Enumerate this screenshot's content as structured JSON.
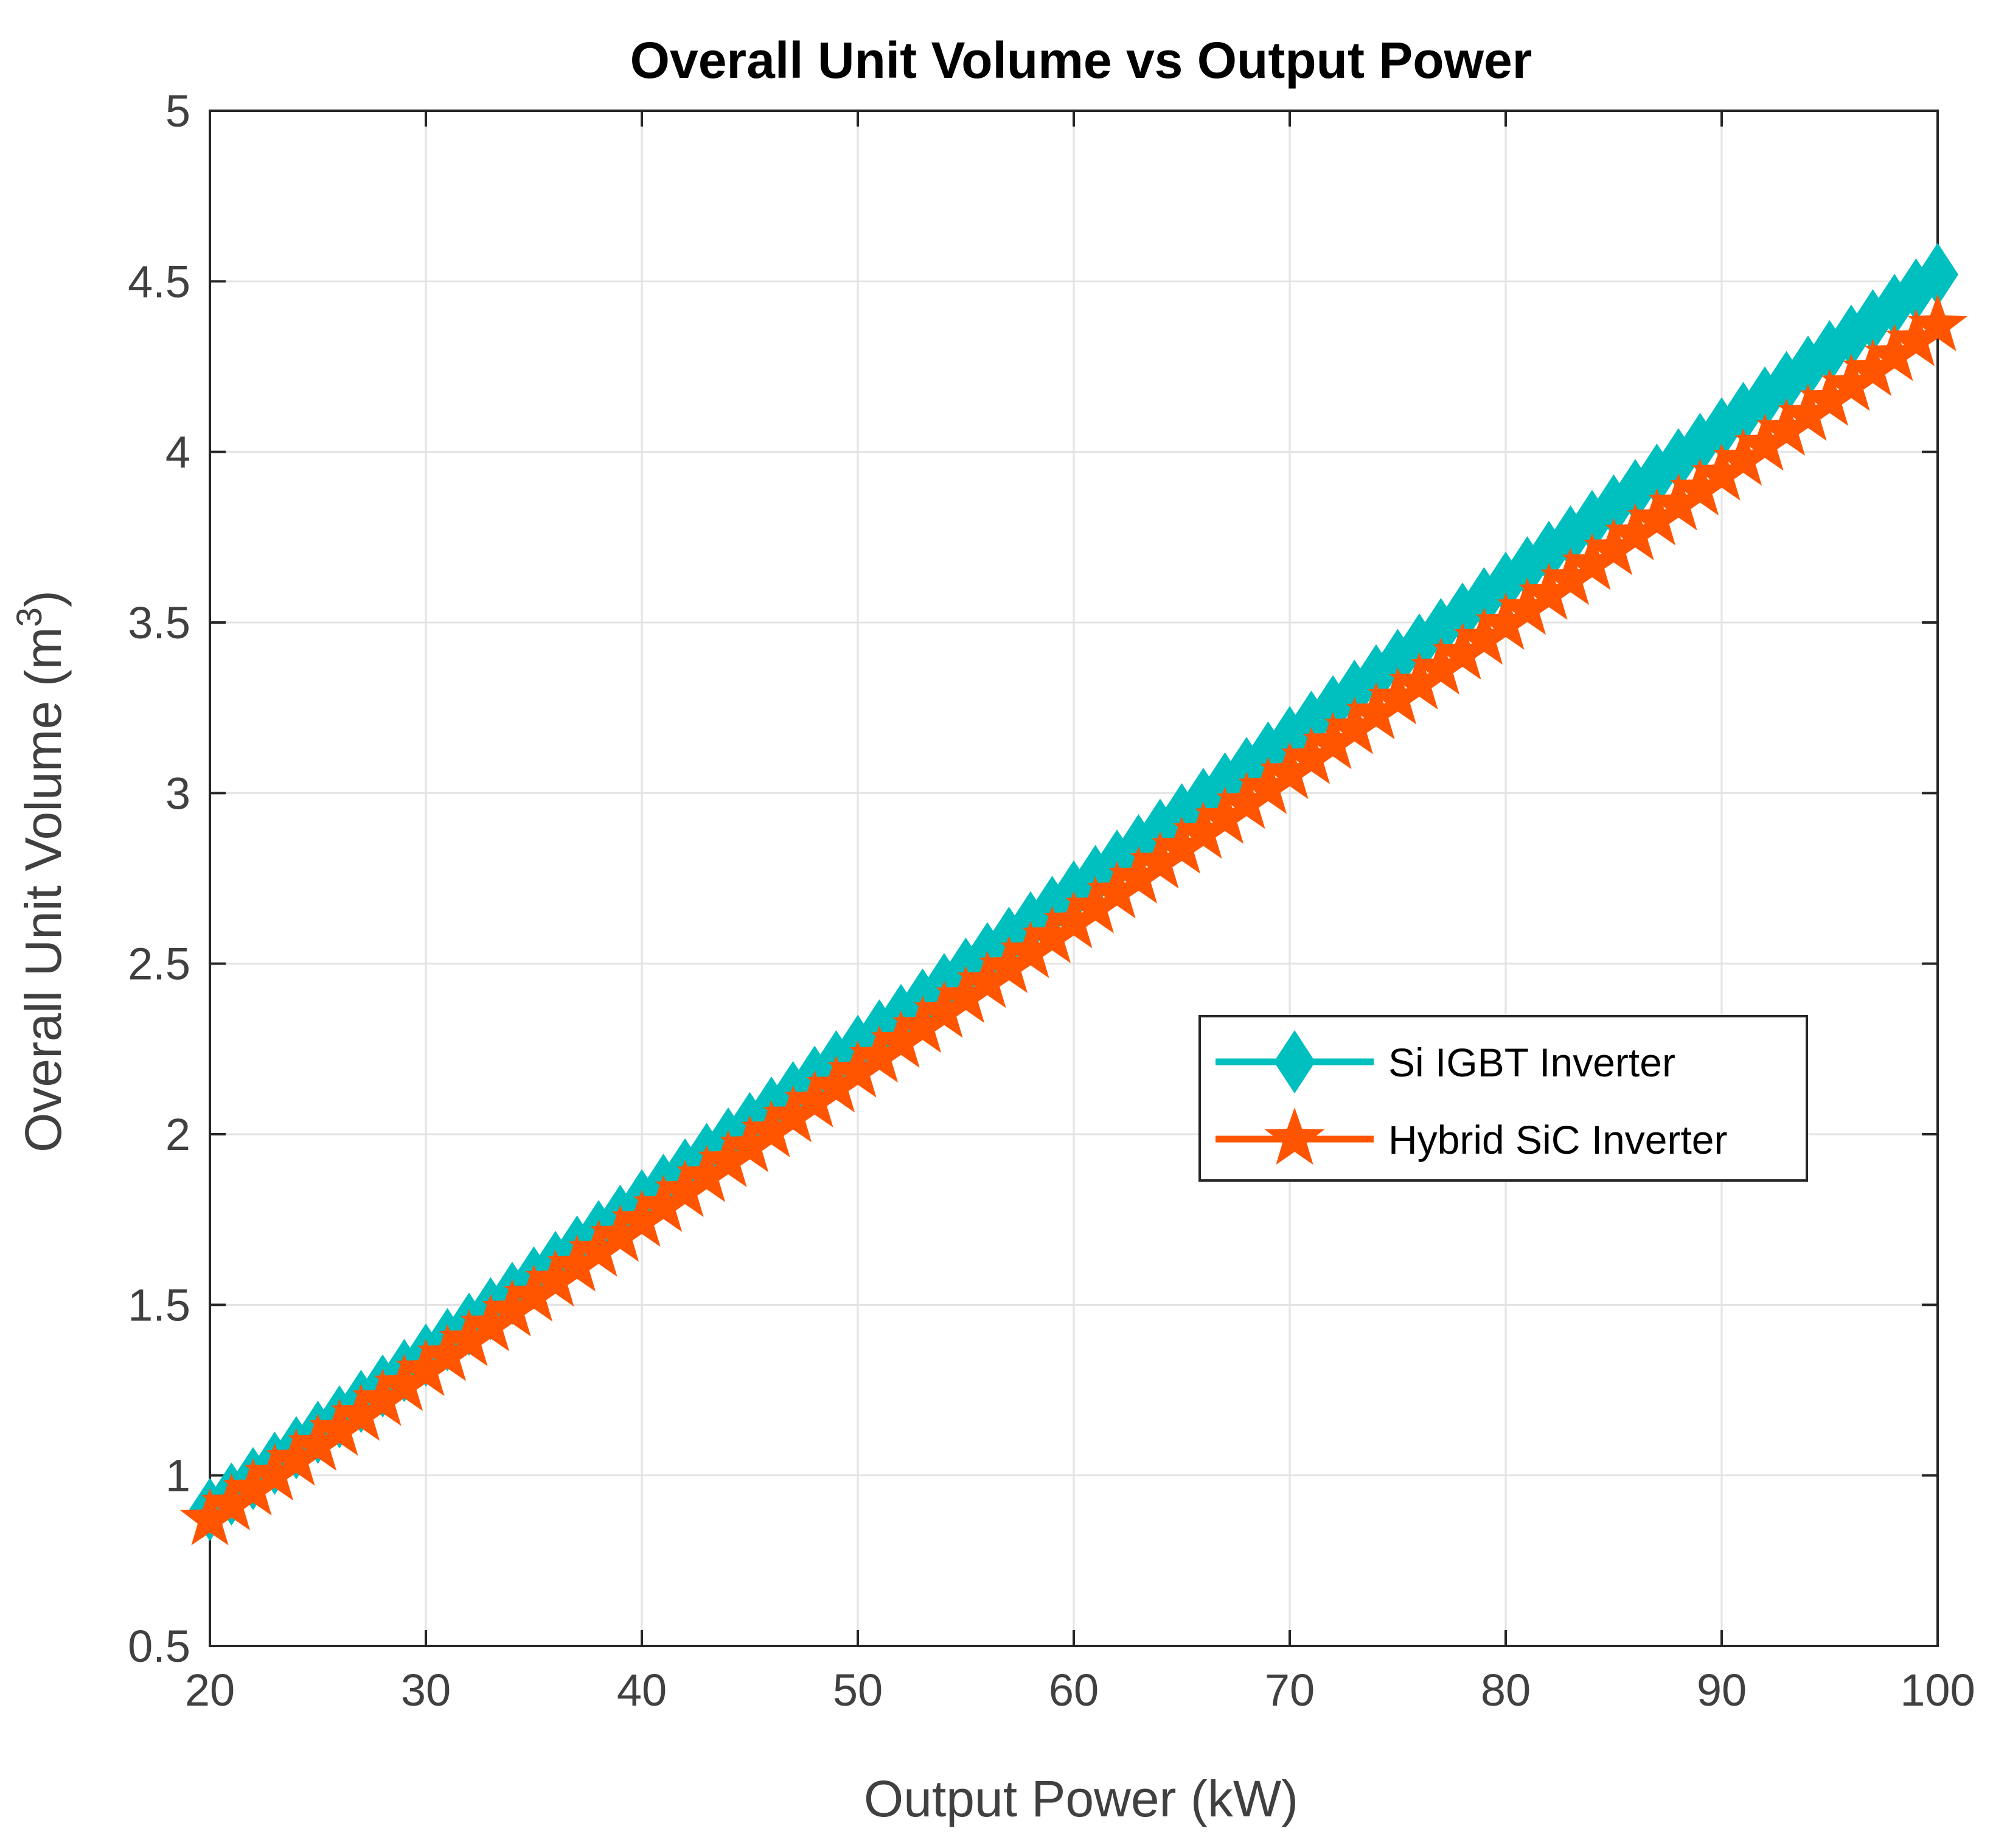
{
  "chart_data": {
    "type": "line",
    "title": "Overall Unit Volume vs Output Power",
    "xlabel": "Output Power (kW)",
    "ylabel": "Overall Unit Volume (m",
    "ylabel_superscript": "3",
    "ylabel_suffix": ")",
    "xlim": [
      20,
      100
    ],
    "ylim": [
      0.5,
      5
    ],
    "xticks": [
      20,
      30,
      40,
      50,
      60,
      70,
      80,
      90,
      100
    ],
    "xtick_labels": [
      "20",
      "30",
      "40",
      "50",
      "60",
      "70",
      "80",
      "90",
      "100"
    ],
    "yticks": [
      0.5,
      1,
      1.5,
      2,
      2.5,
      3,
      3.5,
      4,
      4.5,
      5
    ],
    "ytick_labels": [
      "0.5",
      "1",
      "1.5",
      "2",
      "2.5",
      "3",
      "3.5",
      "4",
      "4.5",
      "5"
    ],
    "grid": true,
    "legend_position": "center-right",
    "series": [
      {
        "name": "Si IGBT Inverter",
        "color": "#00BFBF",
        "marker": "diamond",
        "x_start": 20,
        "x_end": 100,
        "x_step": 1,
        "y_start": 0.9,
        "y_end": 4.52
      },
      {
        "name": "Hybrid SiC Inverter",
        "color": "#FF5500",
        "marker": "star",
        "x_start": 20,
        "x_end": 100,
        "x_step": 1,
        "y_start": 0.87,
        "y_end": 4.37
      }
    ]
  }
}
